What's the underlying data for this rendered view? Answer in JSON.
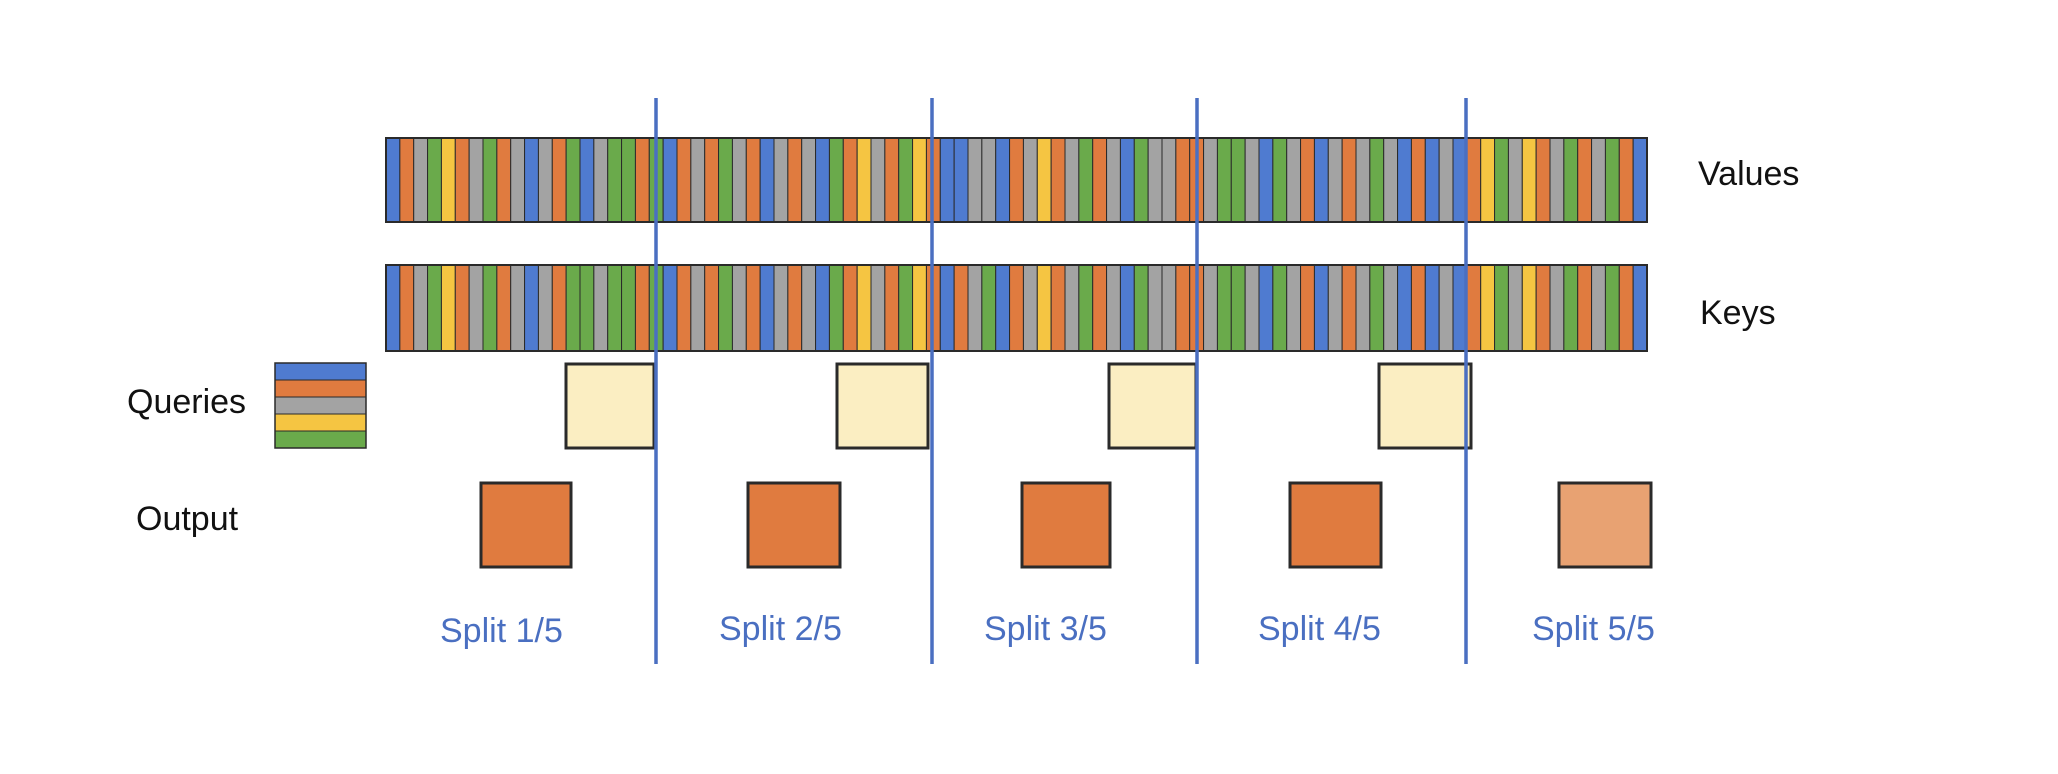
{
  "labels": {
    "values": "Values",
    "keys": "Keys",
    "queries": "Queries",
    "output": "Output"
  },
  "splits": [
    {
      "label": "Split 1/5",
      "output_color": "#e07b3f"
    },
    {
      "label": "Split 2/5",
      "output_color": "#e07b3f"
    },
    {
      "label": "Split 3/5",
      "output_color": "#e07b3f"
    },
    {
      "label": "Split 4/5",
      "output_color": "#e07b3f"
    },
    {
      "label": "Split 5/5",
      "output_color": "#e8a272"
    }
  ],
  "colors": {
    "blue": "#4f7bd0",
    "orange": "#e07b3f",
    "gray": "#a3a3a3",
    "yellow": "#f5c542",
    "green": "#6aaa4b",
    "lightblue": "#7ea8e0",
    "query_fill": "#fbeec2",
    "divider": "#4a6fc1",
    "border": "#2a2a2a",
    "split_text": "#4a6fc1"
  },
  "query_stack": [
    "blue",
    "orange",
    "gray",
    "yellow",
    "green"
  ],
  "values_strip": [
    "blue",
    "orange",
    "gray",
    "green",
    "yellow",
    "orange",
    "gray",
    "green",
    "orange",
    "gray",
    "blue",
    "gray",
    "orange",
    "green",
    "blue",
    "gray",
    "green",
    "green",
    "orange",
    "green",
    "blue",
    "orange",
    "gray",
    "orange",
    "green",
    "gray",
    "orange",
    "blue",
    "gray",
    "orange",
    "gray",
    "blue",
    "green",
    "orange",
    "yellow",
    "gray",
    "orange",
    "green",
    "yellow",
    "orange",
    "blue",
    "blue",
    "gray",
    "gray",
    "blue",
    "orange",
    "gray",
    "yellow",
    "orange",
    "gray",
    "green",
    "orange",
    "gray",
    "blue",
    "green",
    "gray",
    "gray",
    "orange",
    "orange",
    "gray",
    "green",
    "green",
    "gray",
    "blue",
    "green",
    "gray",
    "orange",
    "blue",
    "gray",
    "orange",
    "gray",
    "green",
    "gray",
    "blue",
    "orange",
    "blue",
    "gray",
    "blue",
    "orange",
    "yellow",
    "green",
    "gray",
    "yellow",
    "orange",
    "gray",
    "green",
    "orange",
    "gray",
    "green",
    "orange",
    "blue"
  ],
  "keys_strip": [
    "blue",
    "orange",
    "gray",
    "green",
    "yellow",
    "orange",
    "gray",
    "green",
    "orange",
    "gray",
    "blue",
    "gray",
    "orange",
    "green",
    "green",
    "gray",
    "green",
    "green",
    "orange",
    "green",
    "blue",
    "orange",
    "gray",
    "orange",
    "green",
    "gray",
    "orange",
    "blue",
    "gray",
    "orange",
    "gray",
    "blue",
    "green",
    "orange",
    "yellow",
    "gray",
    "orange",
    "green",
    "yellow",
    "orange",
    "blue",
    "orange",
    "gray",
    "green",
    "blue",
    "orange",
    "gray",
    "yellow",
    "orange",
    "gray",
    "green",
    "orange",
    "gray",
    "blue",
    "green",
    "gray",
    "gray",
    "orange",
    "orange",
    "gray",
    "green",
    "green",
    "gray",
    "blue",
    "green",
    "gray",
    "orange",
    "blue",
    "gray",
    "orange",
    "gray",
    "green",
    "gray",
    "blue",
    "orange",
    "blue",
    "gray",
    "blue",
    "orange",
    "yellow",
    "green",
    "gray",
    "yellow",
    "orange",
    "gray",
    "green",
    "orange",
    "gray",
    "green",
    "orange",
    "blue"
  ]
}
